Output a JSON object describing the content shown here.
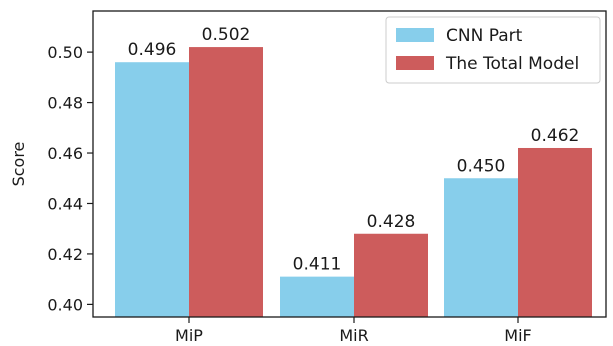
{
  "chart_data": {
    "type": "bar",
    "categories": [
      "MiP",
      "MiR",
      "MiF"
    ],
    "series": [
      {
        "name": "CNN Part",
        "values": [
          0.496,
          0.411,
          0.45
        ],
        "labels": [
          "0.496",
          "0.411",
          "0.450"
        ],
        "color": "#87ceeb"
      },
      {
        "name": "The Total Model",
        "values": [
          0.502,
          0.428,
          0.462
        ],
        "labels": [
          "0.502",
          "0.428",
          "0.462"
        ],
        "color": "#cd5c5c"
      }
    ],
    "title": "",
    "xlabel": "",
    "ylabel": "Score",
    "ylim": [
      0.395,
      0.5163
    ],
    "yticks": [
      0.4,
      0.42,
      0.44,
      0.46,
      0.48,
      0.5
    ],
    "ytick_labels": [
      "0.40",
      "0.42",
      "0.44",
      "0.46",
      "0.48",
      "0.50"
    ],
    "grid": false,
    "legend_position": "top-right"
  }
}
